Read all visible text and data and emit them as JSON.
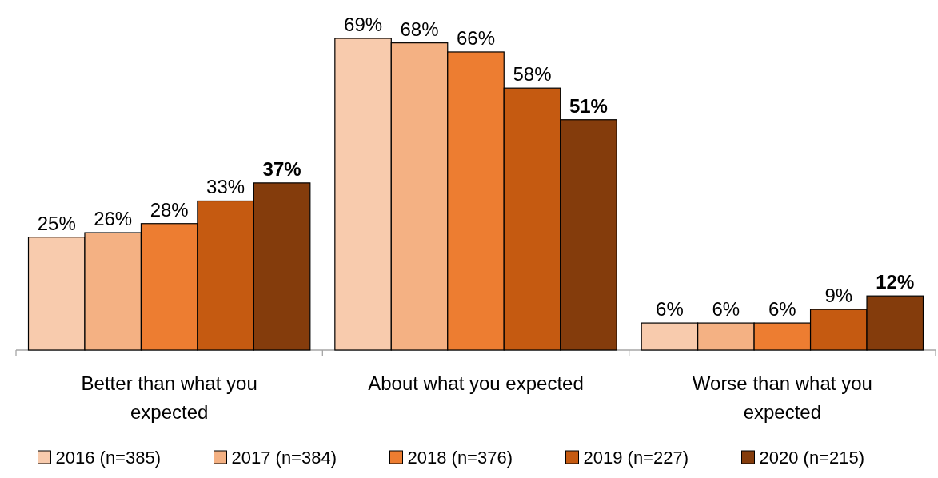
{
  "chart_data": {
    "type": "bar",
    "categories": [
      "Better than what you expected",
      "About what you expected",
      "Worse than what you expected"
    ],
    "series": [
      {
        "name": "2016 (n=385)",
        "color": "#f8cbad",
        "values": [
          25,
          69,
          6
        ],
        "value_labels": [
          "25%",
          "69%",
          "6%"
        ]
      },
      {
        "name": "2017 (n=384)",
        "color": "#f4b183",
        "values": [
          26,
          68,
          6
        ],
        "value_labels": [
          "26%",
          "68%",
          "6%"
        ]
      },
      {
        "name": "2018 (n=376)",
        "color": "#ed7d31",
        "values": [
          28,
          66,
          6
        ],
        "value_labels": [
          "28%",
          "66%",
          "6%"
        ]
      },
      {
        "name": "2019 (n=227)",
        "color": "#c55a11",
        "values": [
          33,
          58,
          9
        ],
        "value_labels": [
          "33%",
          "58%",
          "9%"
        ]
      },
      {
        "name": "2020 (n=215)",
        "color": "#843c0c",
        "values": [
          37,
          51,
          12
        ],
        "value_labels": [
          "37%",
          "51%",
          "12%"
        ]
      }
    ],
    "legend": "bottom"
  }
}
